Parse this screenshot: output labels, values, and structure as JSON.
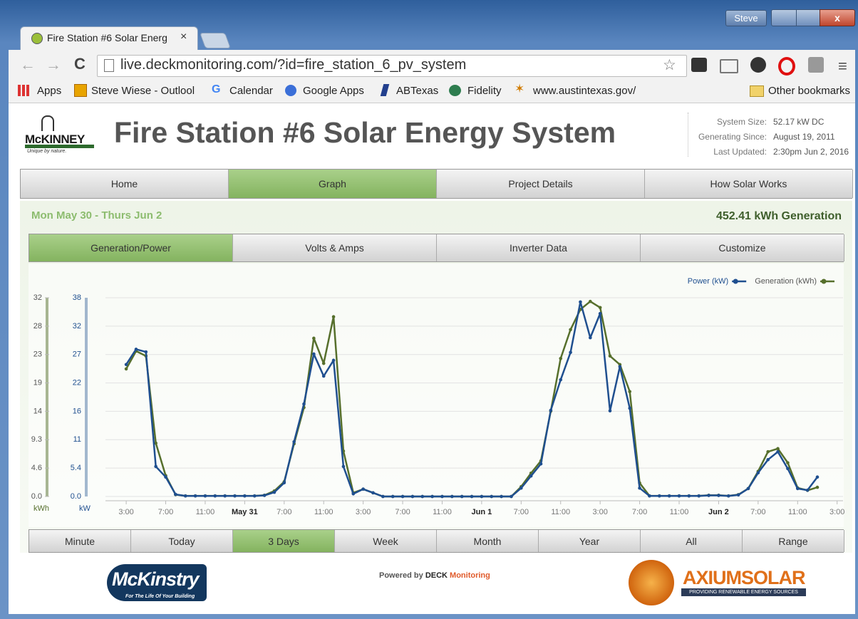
{
  "browser": {
    "user": "Steve",
    "tab_title": "Fire Station #6 Solar Energ",
    "url": "live.deckmonitoring.com/?id=fire_station_6_pv_system",
    "bookmarks": [
      "Apps",
      "Steve Wiese - Outlool",
      "Calendar",
      "Google Apps",
      "ABTexas",
      "Fidelity",
      "www.austintexas.gov/"
    ],
    "other_bookmarks": "Other bookmarks"
  },
  "site": {
    "logo": "McKINNEY",
    "logo_tagline": "Unique by nature.",
    "title": "Fire Station #6 Solar Energy System",
    "system_info": [
      {
        "label": "System Size:",
        "value": "52.17 kW DC"
      },
      {
        "label": "Generating Since:",
        "value": "August 19, 2011"
      },
      {
        "label": "Last Updated:",
        "value": "2:30pm Jun 2, 2016"
      }
    ],
    "nav": [
      "Home",
      "Graph",
      "Project Details",
      "How Solar Works"
    ],
    "nav_active": 1,
    "date_range": "Mon May 30 - Thurs Jun 2",
    "total": "452.41 kWh Generation",
    "tabs": [
      "Generation/Power",
      "Volts & Amps",
      "Inverter Data",
      "Customize"
    ],
    "tab_active": 0,
    "ranges": [
      "Minute",
      "Today",
      "3 Days",
      "Week",
      "Month",
      "Year",
      "All",
      "Range"
    ],
    "range_active": 2,
    "footer": {
      "left_logo": "McKinstry",
      "left_tagline": "For The Life Of Your Building",
      "powered_by": "Powered by",
      "deck": "DECK",
      "monitoring": "Monitoring",
      "right_logo": "AXIUMSOLAR",
      "right_tagline": "PROVIDING RENEWABLE ENERGY SOURCES"
    }
  },
  "chart_data": {
    "type": "line",
    "legend": "top-right",
    "grid": true,
    "y_label": "kW",
    "y2_label": "kWh",
    "x": [
      0,
      1,
      2,
      3,
      4,
      5,
      6,
      7,
      8,
      9,
      10,
      11,
      12,
      13,
      14,
      15,
      16,
      17,
      18,
      19,
      20,
      21,
      22,
      23,
      24,
      25,
      26,
      27,
      28,
      29,
      30,
      31,
      32,
      33,
      34,
      35,
      36,
      37,
      38,
      39,
      40,
      41,
      42,
      43,
      44,
      45,
      46,
      47,
      48,
      49,
      50,
      51,
      52,
      53,
      54,
      55,
      56,
      57,
      58,
      59,
      60,
      61,
      62,
      63,
      64,
      65,
      66,
      67,
      68,
      69,
      70
    ],
    "xlim": [
      -2.1,
      72.6
    ],
    "xticks": [
      {
        "value": 0,
        "label": "3:00"
      },
      {
        "value": 4,
        "label": "7:00"
      },
      {
        "value": 8,
        "label": "11:00"
      },
      {
        "value": 12,
        "label": "May 31"
      },
      {
        "value": 16,
        "label": "7:00"
      },
      {
        "value": 20,
        "label": "11:00"
      },
      {
        "value": 24,
        "label": "3:00"
      },
      {
        "value": 28,
        "label": "7:00"
      },
      {
        "value": 32,
        "label": "11:00"
      },
      {
        "value": 36,
        "label": "Jun 1"
      },
      {
        "value": 40,
        "label": "7:00"
      },
      {
        "value": 44,
        "label": "11:00"
      },
      {
        "value": 48,
        "label": "3:00"
      },
      {
        "value": 52,
        "label": "7:00"
      },
      {
        "value": 56,
        "label": "11:00"
      },
      {
        "value": 60,
        "label": "Jun 2"
      },
      {
        "value": 64,
        "label": "7:00"
      },
      {
        "value": 68,
        "label": "11:00"
      },
      {
        "value": 72,
        "label": "3:00"
      }
    ],
    "ylim": [
      0,
      37.8
    ],
    "yticks": [
      {
        "value": 0,
        "label": "0.0"
      },
      5.4,
      {
        "value": 10.8,
        "label": "11"
      },
      {
        "value": 16.2,
        "label": "16"
      },
      {
        "value": 21.6,
        "label": "22"
      },
      27,
      {
        "value": 32.4,
        "label": "32"
      },
      {
        "value": 37.8,
        "label": "38"
      }
    ],
    "y2lim": [
      0,
      32.4
    ],
    "y2ticks": [
      {
        "value": 0,
        "label": "0.0"
      },
      {
        "value": 4.63,
        "label": "4.6"
      },
      {
        "value": 9.26,
        "label": "9.3"
      },
      {
        "value": 13.89,
        "label": "14"
      },
      {
        "value": 18.51,
        "label": "19"
      },
      {
        "value": 23.14,
        "label": "23"
      },
      {
        "value": 27.77,
        "label": "28"
      },
      {
        "value": 32.4,
        "label": "32"
      }
    ],
    "series": [
      {
        "name": "Power (kW)",
        "color": "#1f4f8f",
        "values": [
          25.1,
          28.0,
          27.5,
          5.7,
          3.7,
          0.4,
          0.1,
          0.1,
          0.1,
          0.1,
          0.1,
          0.1,
          0.1,
          0.1,
          0.2,
          0.8,
          2.6,
          10.4,
          17.6,
          27.1,
          22.9,
          25.9,
          5.7,
          0.5,
          1.4,
          0.7,
          0,
          0,
          0,
          0,
          0,
          0,
          0,
          0,
          0,
          0,
          0,
          0,
          0,
          0,
          1.6,
          3.9,
          6.2,
          16.4,
          22.2,
          27.4,
          37.0,
          30.2,
          34.8,
          16.3,
          24.7,
          16.8,
          1.6,
          0.1,
          0.1,
          0.1,
          0.1,
          0.1,
          0.1,
          0.2,
          0.2,
          0.1,
          0.3,
          1.5,
          4.5,
          7.0,
          8.5,
          5.3,
          1.5,
          1.2,
          3.7
        ]
      },
      {
        "name": "Generation (kWh)",
        "color": "#566f2c",
        "axis": "y2",
        "values": [
          20.8,
          23.7,
          22.9,
          8.7,
          3.4,
          0.3,
          0.1,
          0.1,
          0.1,
          0.1,
          0.1,
          0.1,
          0.1,
          0.1,
          0.2,
          0.9,
          2.4,
          8.6,
          14.5,
          25.8,
          21.7,
          29.3,
          7.4,
          0.6,
          1.2,
          0.6,
          0,
          0,
          0,
          0,
          0,
          0,
          0,
          0,
          0,
          0,
          0,
          0,
          0,
          0,
          1.6,
          3.8,
          5.8,
          13.9,
          22.5,
          27.2,
          30.5,
          31.8,
          30.8,
          22.9,
          21.5,
          17.1,
          2.2,
          0.1,
          0.1,
          0.1,
          0.1,
          0.1,
          0.1,
          0.2,
          0.2,
          0.1,
          0.3,
          1.3,
          4.1,
          7.3,
          7.8,
          5.5,
          1.4,
          1.0,
          1.5
        ]
      }
    ]
  }
}
